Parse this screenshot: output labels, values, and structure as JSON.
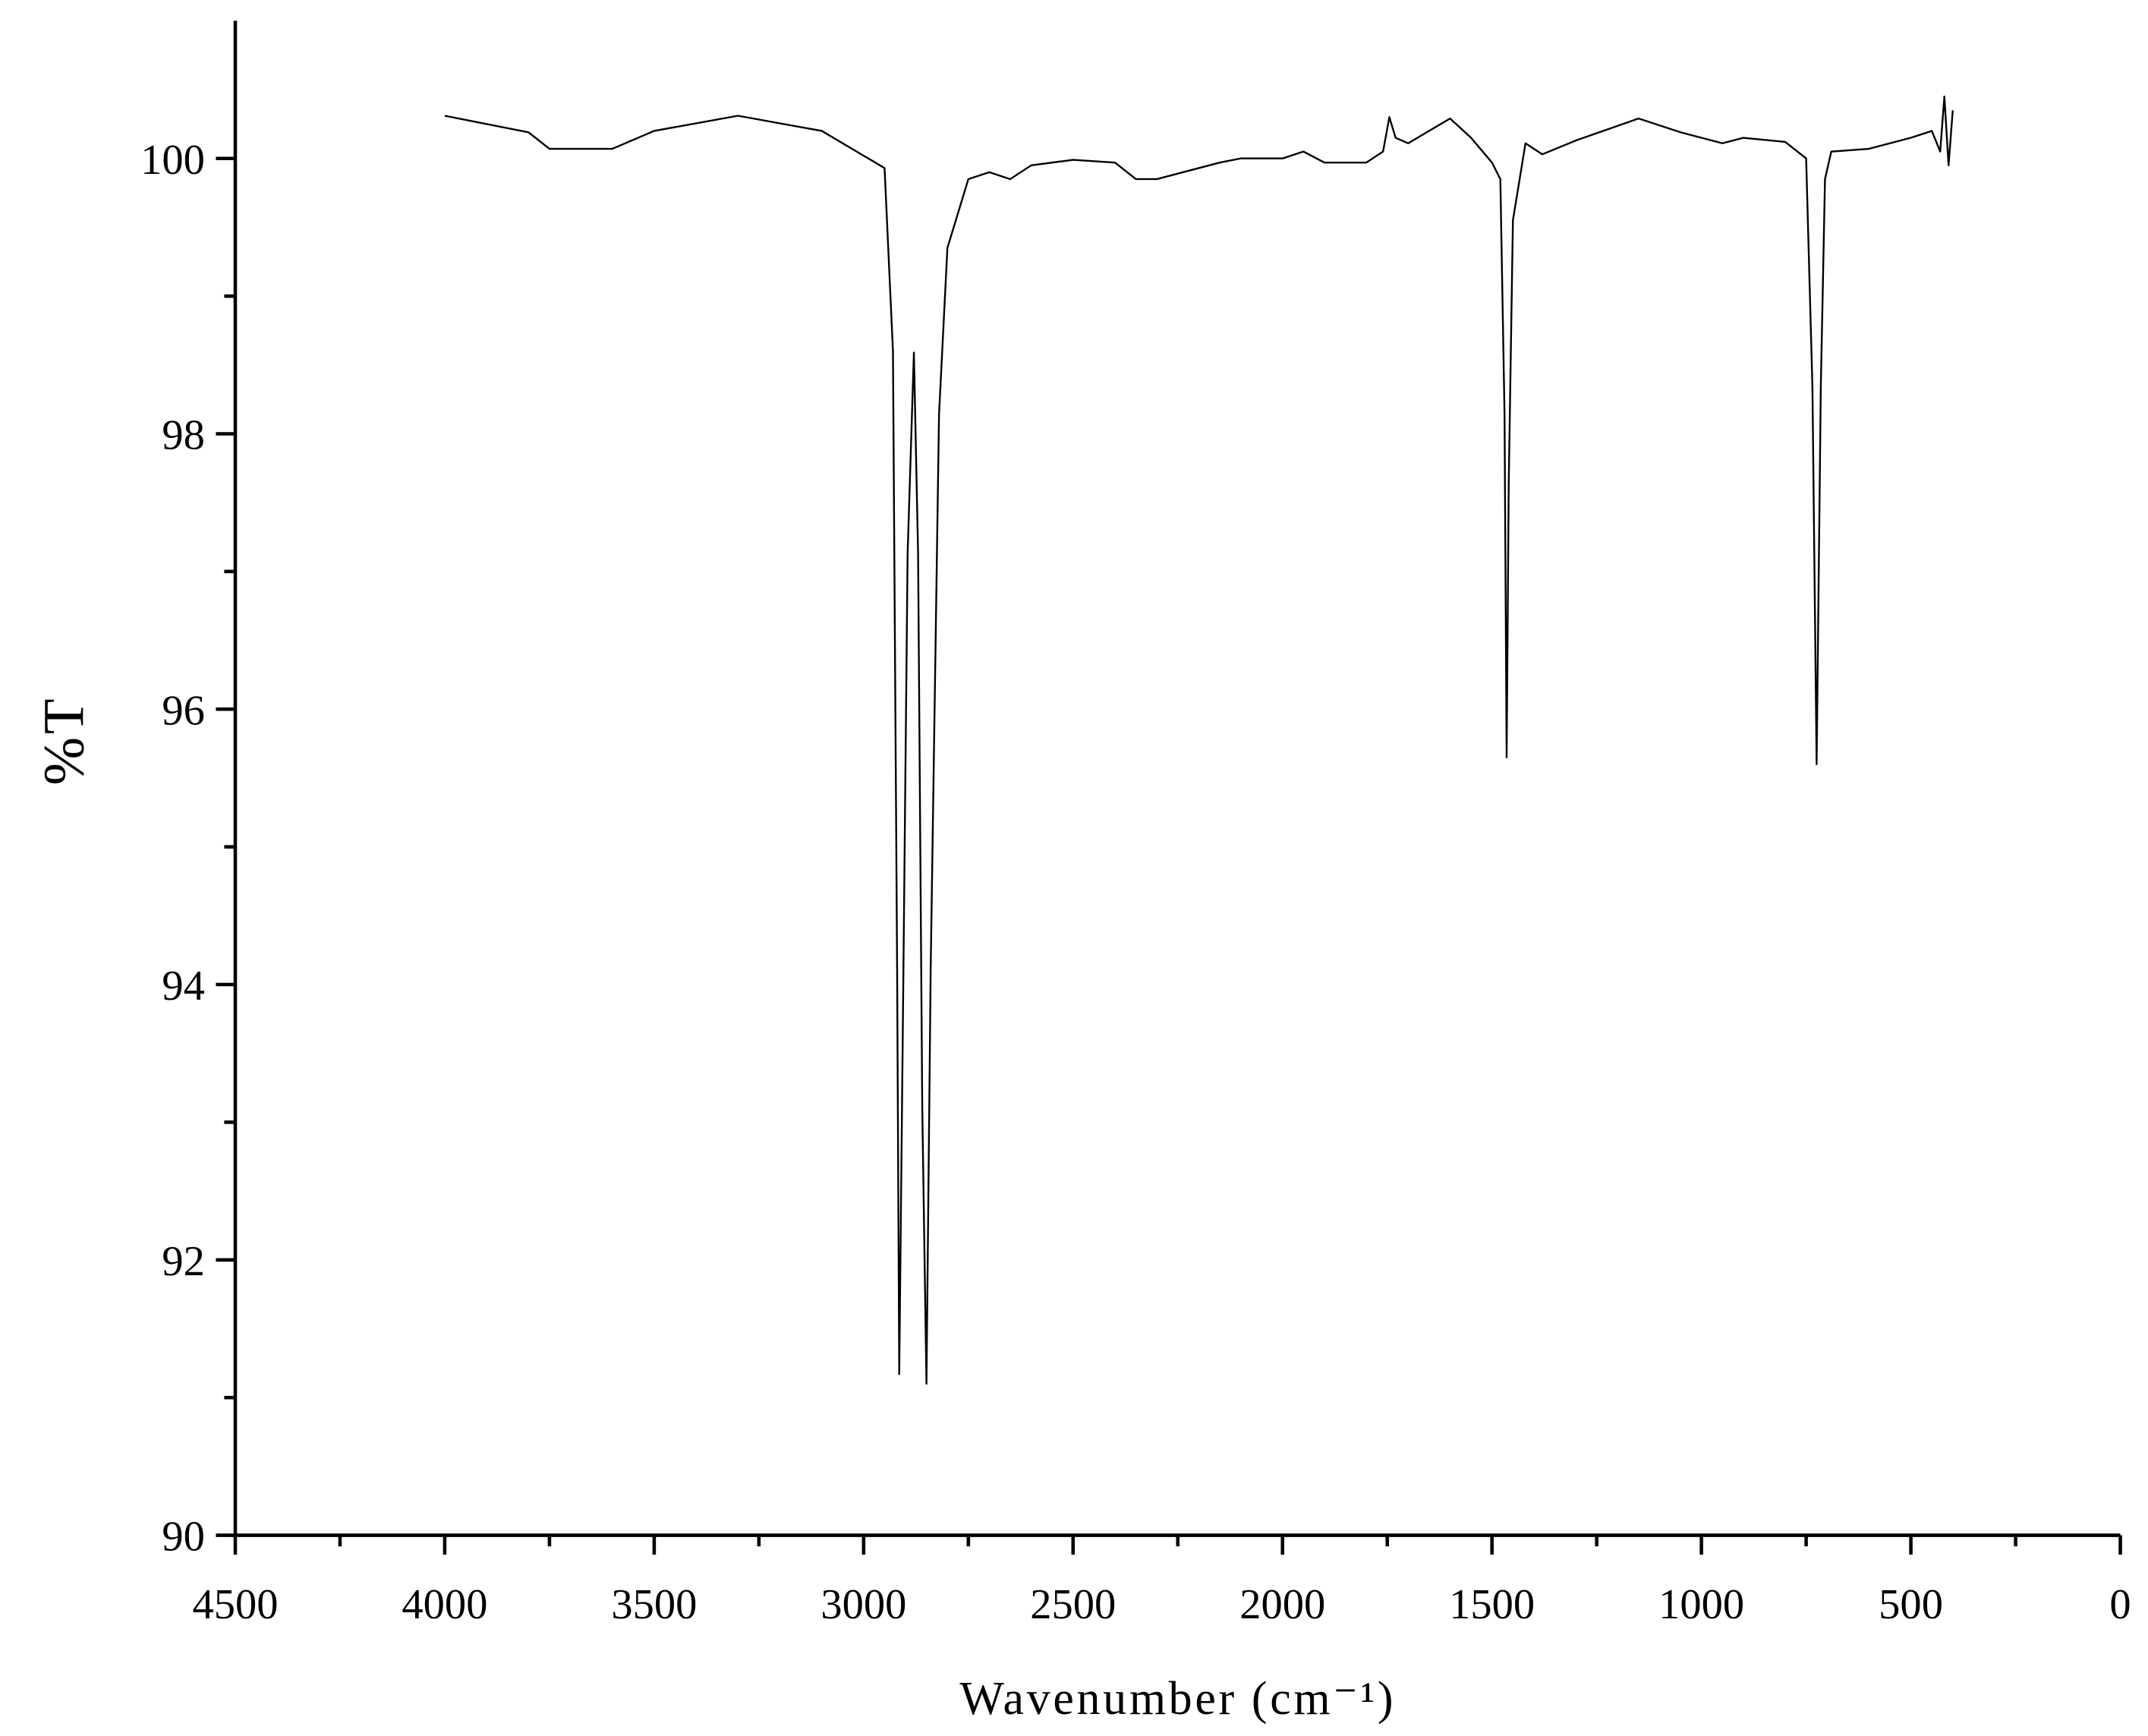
{
  "chart_data": {
    "type": "line",
    "xlabel": "Wavenumber (cm⁻¹)",
    "ylabel": "%T",
    "color": "#000000",
    "xlim": [
      4500,
      0
    ],
    "xticks": [
      4500,
      4000,
      3500,
      3000,
      2500,
      2000,
      1500,
      1000,
      500,
      0
    ],
    "xminorticks": [
      4250,
      3750,
      3250,
      2750,
      2250,
      1750,
      1250,
      750,
      250
    ],
    "ylim": [
      90,
      101
    ],
    "yticks": [
      90,
      92,
      94,
      96,
      98,
      100
    ],
    "yminorticks": [
      91,
      93,
      95,
      97,
      99
    ],
    "x": [
      4000,
      3800,
      3750,
      3600,
      3500,
      3300,
      3100,
      3000,
      2950,
      2930,
      2920,
      2915,
      2905,
      2895,
      2880,
      2870,
      2860,
      2850,
      2840,
      2820,
      2800,
      2750,
      2700,
      2650,
      2600,
      2500,
      2400,
      2350,
      2300,
      2200,
      2150,
      2100,
      2000,
      1950,
      1900,
      1800,
      1760,
      1745,
      1730,
      1700,
      1600,
      1550,
      1500,
      1480,
      1470,
      1465,
      1460,
      1450,
      1420,
      1380,
      1300,
      1150,
      1050,
      950,
      900,
      800,
      750,
      735,
      725,
      715,
      705,
      690,
      600,
      500,
      450,
      430,
      420,
      410,
      400
    ],
    "values": [
      100.31,
      100.19,
      100.07,
      100.07,
      100.2,
      100.31,
      100.2,
      100.02,
      99.93,
      98.6,
      94.1,
      91.17,
      94.1,
      97.13,
      98.59,
      97.13,
      93.1,
      91.1,
      94.1,
      98.14,
      99.35,
      99.85,
      99.9,
      99.85,
      99.95,
      99.99,
      99.97,
      99.85,
      99.85,
      99.93,
      99.97,
      100,
      100,
      100.05,
      99.97,
      99.97,
      100.05,
      100.3,
      100.15,
      100.11,
      100.29,
      100.15,
      99.97,
      99.85,
      98.14,
      95.65,
      97.64,
      99.55,
      100.11,
      100.03,
      100.13,
      100.29,
      100.19,
      100.11,
      100.15,
      100.12,
      100,
      98.34,
      95.6,
      98.34,
      99.85,
      100.05,
      100.07,
      100.15,
      100.2,
      100.05,
      100.45,
      99.95,
      100.35
    ]
  }
}
